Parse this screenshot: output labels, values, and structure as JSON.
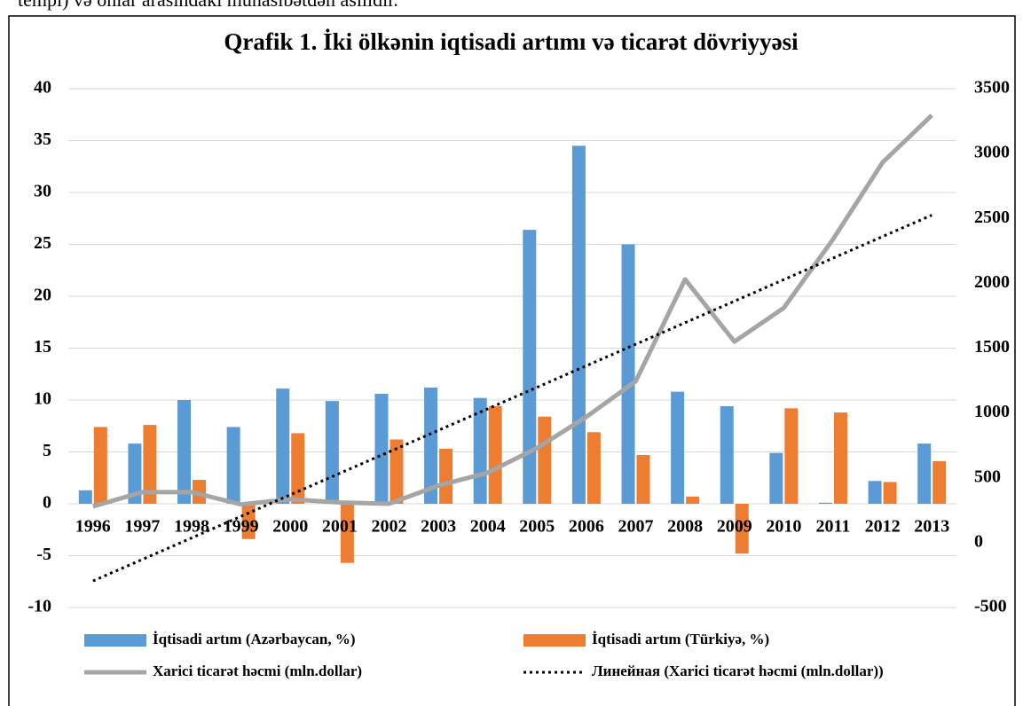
{
  "doc_text": "tempi) və onlar arasındakı münasibətdən asılıdır.",
  "chart_data": {
    "type": "bar",
    "title": "Qrafik 1. İki ölkənin iqtisadi artımı və ticarət dövriyyəsi",
    "categories": [
      "1996",
      "1997",
      "1998",
      "1999",
      "2000",
      "2001",
      "2002",
      "2003",
      "2004",
      "2005",
      "2006",
      "2007",
      "2008",
      "2009",
      "2010",
      "2011",
      "2012",
      "2013"
    ],
    "series": [
      {
        "name": "İqtisadi artım (Azərbaycan, %)",
        "type": "bar",
        "color": "#5b9bd5",
        "values": [
          1.3,
          5.8,
          10.0,
          7.4,
          11.1,
          9.9,
          10.6,
          11.2,
          10.2,
          26.4,
          34.5,
          25.0,
          10.8,
          9.4,
          4.9,
          0.1,
          2.2,
          5.8
        ]
      },
      {
        "name": "İqtisadi artım (Türkiyə, %)",
        "type": "bar",
        "color": "#ed7d31",
        "values": [
          7.4,
          7.6,
          2.3,
          -3.4,
          6.8,
          -5.7,
          6.2,
          5.3,
          9.4,
          8.4,
          6.9,
          4.7,
          0.7,
          -4.8,
          9.2,
          8.8,
          2.1,
          4.1
        ]
      },
      {
        "name": "Xarici ticarət həcmi (mln.dollar)",
        "type": "line",
        "axis": "y2",
        "color": "#a5a5a5",
        "values": [
          280,
          390,
          390,
          295,
          335,
          310,
          300,
          440,
          540,
          730,
          970,
          1245,
          2030,
          1550,
          1810,
          2340,
          2930,
          3295
        ]
      },
      {
        "name": "Линейная (Xarici ticarət həcmi (mln.dollar))",
        "type": "line",
        "axis": "y2",
        "color": "#000000",
        "dash": "dotted",
        "values": [
          -295,
          -129,
          37,
          203,
          369,
          535,
          700,
          866,
          1032,
          1198,
          1364,
          1530,
          1696,
          1862,
          2028,
          2194,
          2360,
          2525
        ]
      }
    ],
    "ylim": [
      -10,
      40
    ],
    "yticks": [
      -10,
      -5,
      0,
      5,
      10,
      15,
      20,
      25,
      30,
      35,
      40
    ],
    "y2lim": [
      -500,
      3500
    ],
    "y2ticks": [
      -500,
      0,
      500,
      1000,
      1500,
      2000,
      2500,
      3000,
      3500
    ],
    "grid": true,
    "legend": "bottom"
  }
}
